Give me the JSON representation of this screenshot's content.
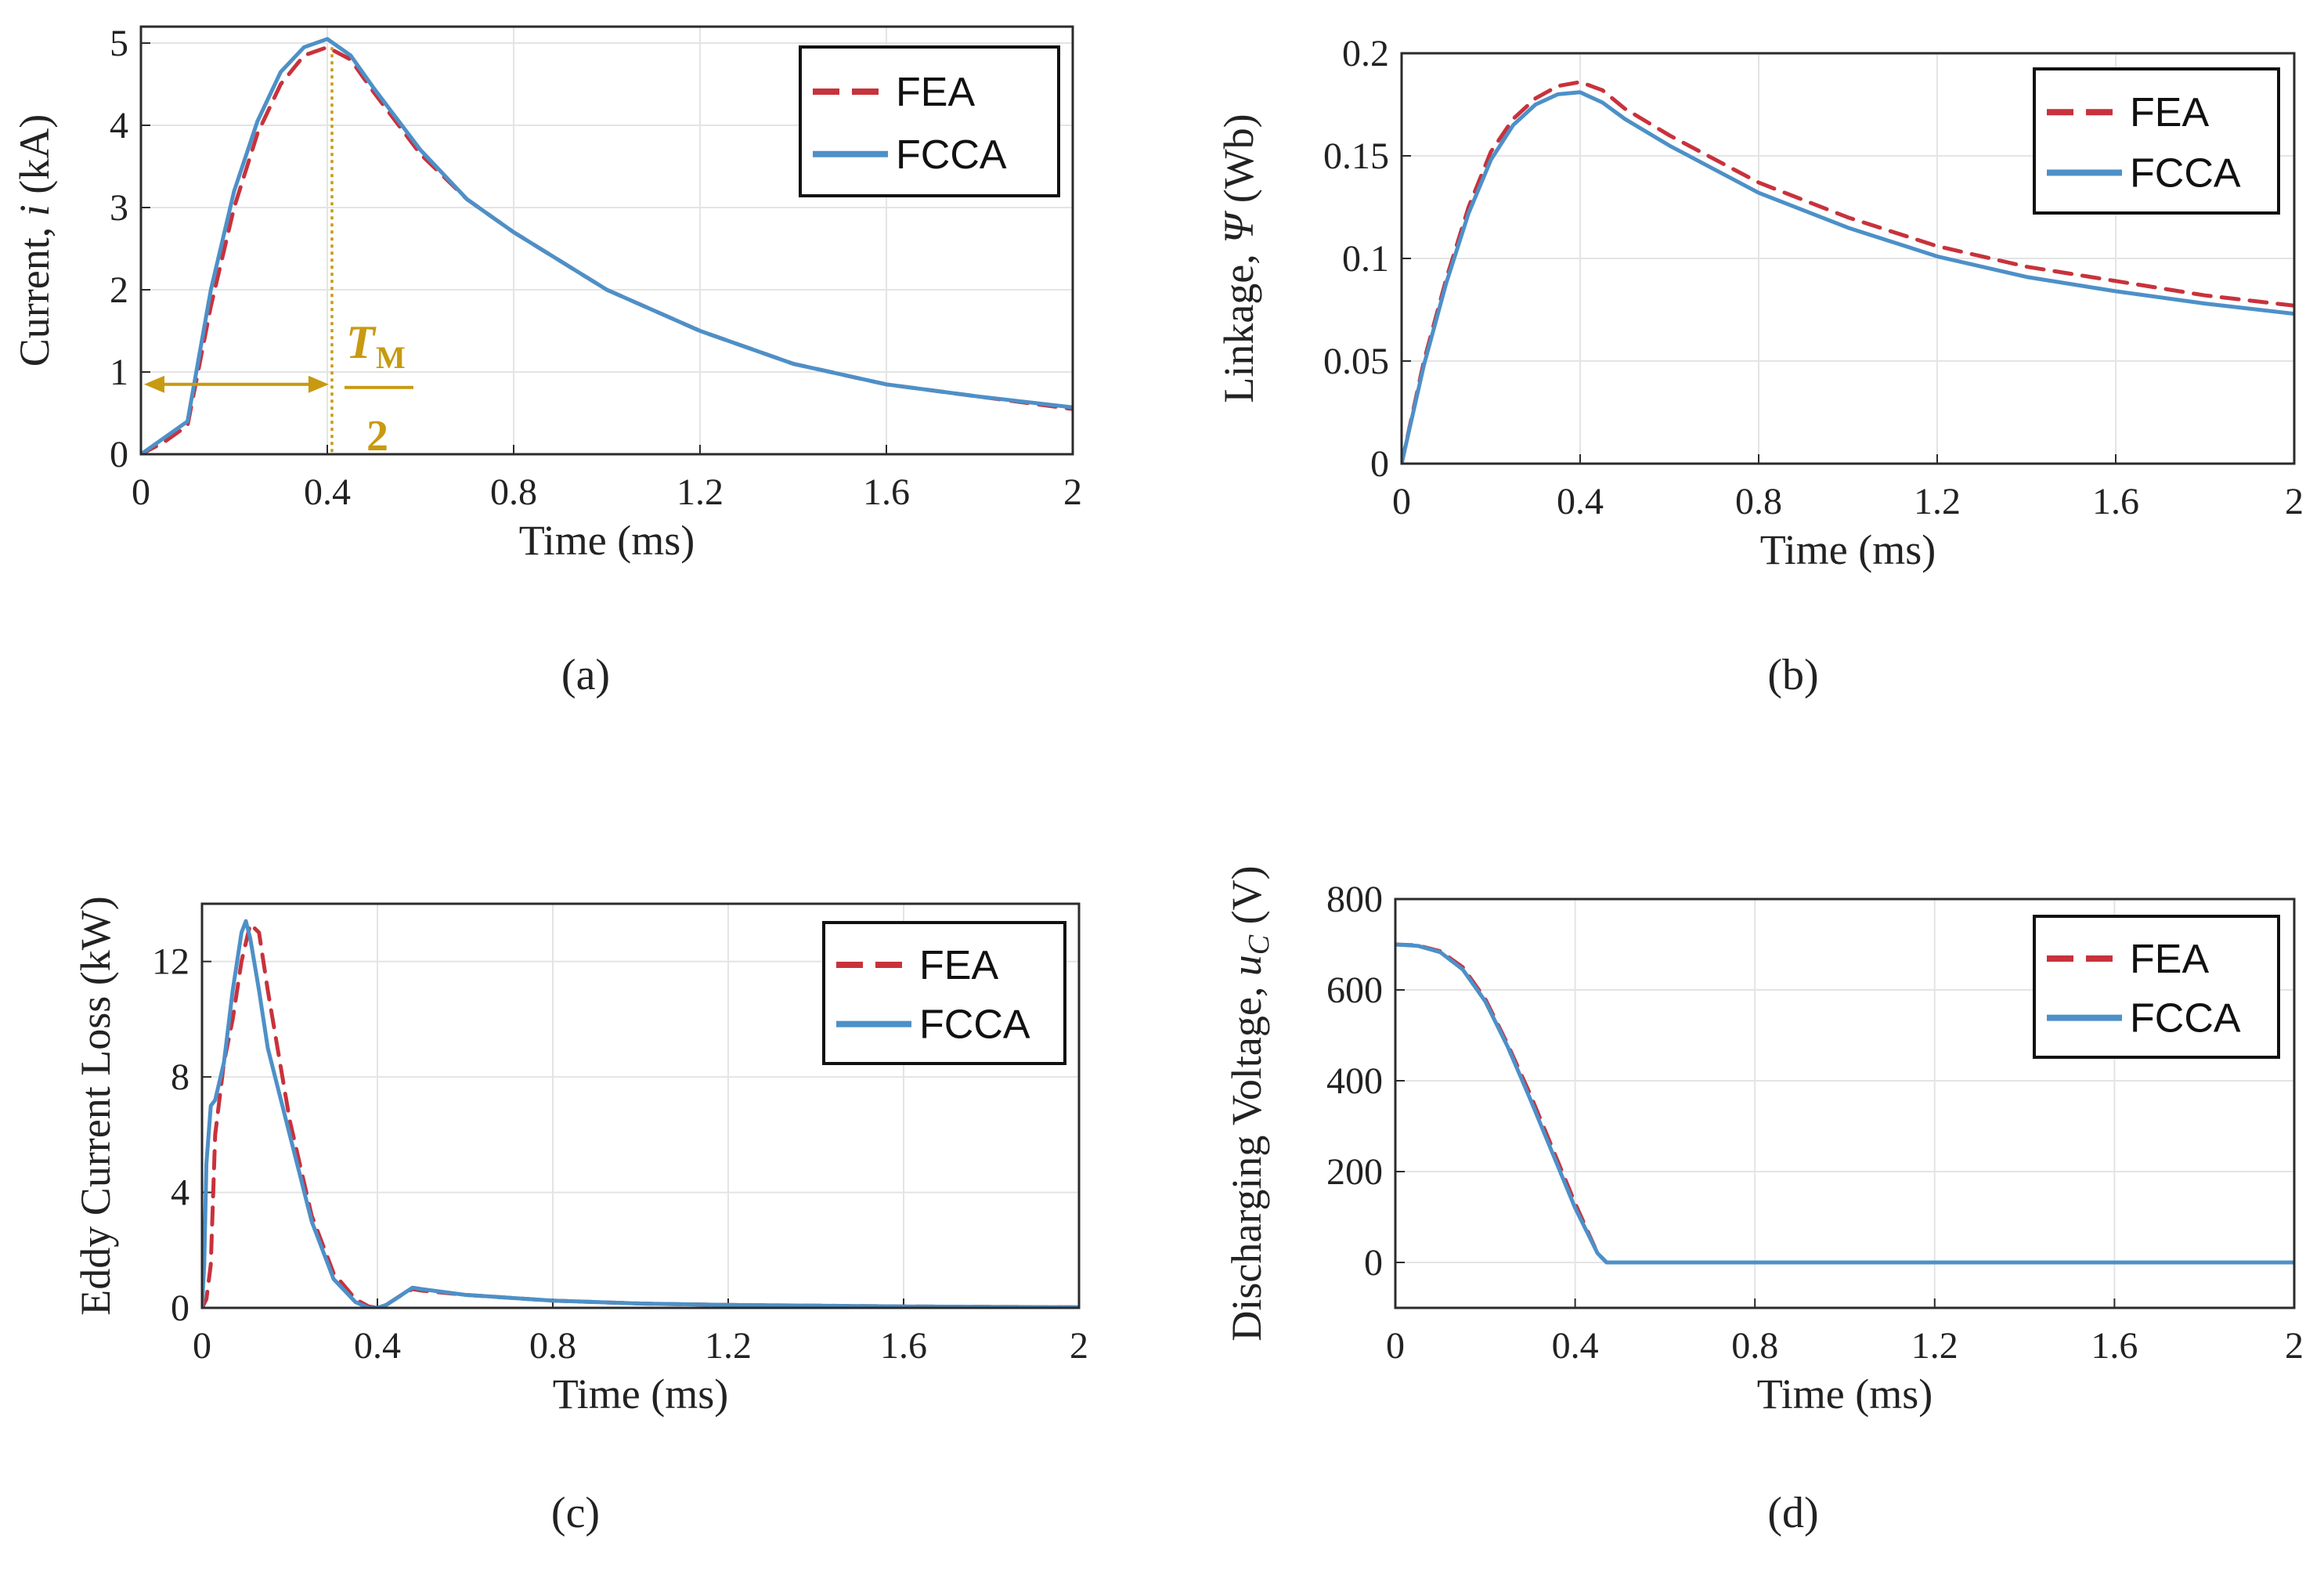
{
  "chart_data": [
    {
      "id": "a",
      "type": "line",
      "caption": "(a)",
      "xlabel": "Time (ms)",
      "ylabel_parts": [
        "Current, ",
        "i",
        " (kA)"
      ],
      "xlim": [
        0,
        2
      ],
      "ylim": [
        0,
        5.2
      ],
      "xticks": [
        0,
        0.4,
        0.8,
        1.2,
        1.6,
        2
      ],
      "xtick_labels": [
        "0",
        "0.4",
        "0.8",
        "1.2",
        "1.6",
        "2"
      ],
      "yticks": [
        0,
        1,
        2,
        3,
        4,
        5
      ],
      "ytick_labels": [
        "0",
        "1",
        "2",
        "3",
        "4",
        "5"
      ],
      "grid": true,
      "legend_position": "top-right",
      "annotation": {
        "symbol": "T",
        "subscript": "M",
        "denominator": "2",
        "x_value": 0.41,
        "arrow_y": 0.85,
        "color": "#c89a10"
      },
      "series": [
        {
          "name": "FEA",
          "style": "dashed",
          "color": "#c8323c",
          "x": [
            0,
            0.05,
            0.1,
            0.15,
            0.2,
            0.25,
            0.3,
            0.35,
            0.4,
            0.45,
            0.5,
            0.6,
            0.7,
            0.8,
            1.0,
            1.2,
            1.4,
            1.6,
            1.8,
            2.0
          ],
          "y": [
            0,
            0.15,
            0.35,
            1.8,
            3.0,
            3.9,
            4.5,
            4.85,
            4.95,
            4.8,
            4.4,
            3.65,
            3.1,
            2.7,
            2.0,
            1.5,
            1.1,
            0.85,
            0.7,
            0.55
          ]
        },
        {
          "name": "FCCA",
          "style": "solid",
          "color": "#4d90c8",
          "x": [
            0,
            0.05,
            0.1,
            0.15,
            0.2,
            0.25,
            0.3,
            0.35,
            0.4,
            0.45,
            0.5,
            0.6,
            0.7,
            0.8,
            1.0,
            1.2,
            1.4,
            1.6,
            1.8,
            2.0
          ],
          "y": [
            0,
            0.2,
            0.4,
            2.0,
            3.2,
            4.05,
            4.65,
            4.95,
            5.05,
            4.85,
            4.45,
            3.7,
            3.1,
            2.7,
            2.0,
            1.5,
            1.1,
            0.85,
            0.7,
            0.57
          ]
        }
      ]
    },
    {
      "id": "b",
      "type": "line",
      "caption": "(b)",
      "xlabel": "Time (ms)",
      "ylabel_parts": [
        "Linkage, ",
        "Ψ",
        " (Wb)"
      ],
      "xlim": [
        0,
        2
      ],
      "ylim": [
        0,
        0.2
      ],
      "xticks": [
        0,
        0.4,
        0.8,
        1.2,
        1.6,
        2
      ],
      "xtick_labels": [
        "0",
        "0.4",
        "0.8",
        "1.2",
        "1.6",
        "2"
      ],
      "yticks": [
        0,
        0.05,
        0.1,
        0.15,
        0.2
      ],
      "ytick_labels": [
        "0",
        "0.05",
        "0.1",
        "0.15",
        "0.2"
      ],
      "grid": true,
      "legend_position": "top-right",
      "series": [
        {
          "name": "FEA",
          "style": "dashed",
          "color": "#c8323c",
          "x": [
            0,
            0.05,
            0.1,
            0.15,
            0.2,
            0.25,
            0.3,
            0.35,
            0.4,
            0.45,
            0.5,
            0.6,
            0.8,
            1.0,
            1.2,
            1.4,
            1.6,
            1.8,
            2.0
          ],
          "y": [
            0,
            0.05,
            0.09,
            0.125,
            0.152,
            0.168,
            0.178,
            0.184,
            0.186,
            0.182,
            0.173,
            0.16,
            0.137,
            0.12,
            0.106,
            0.096,
            0.089,
            0.082,
            0.077
          ]
        },
        {
          "name": "FCCA",
          "style": "solid",
          "color": "#4d90c8",
          "x": [
            0,
            0.05,
            0.1,
            0.15,
            0.2,
            0.25,
            0.3,
            0.35,
            0.4,
            0.45,
            0.5,
            0.6,
            0.8,
            1.0,
            1.2,
            1.4,
            1.6,
            1.8,
            2.0
          ],
          "y": [
            0,
            0.048,
            0.088,
            0.122,
            0.148,
            0.165,
            0.175,
            0.18,
            0.181,
            0.176,
            0.168,
            0.155,
            0.132,
            0.115,
            0.101,
            0.091,
            0.084,
            0.078,
            0.073
          ]
        }
      ]
    },
    {
      "id": "c",
      "type": "line",
      "caption": "(c)",
      "xlabel": "Time (ms)",
      "ylabel_parts": [
        "Eddy Current Loss (kW)"
      ],
      "xlim": [
        0,
        2
      ],
      "ylim": [
        0,
        14
      ],
      "xticks": [
        0,
        0.4,
        0.8,
        1.2,
        1.6,
        2
      ],
      "xtick_labels": [
        "0",
        "0.4",
        "0.8",
        "1.2",
        "1.6",
        "2"
      ],
      "yticks": [
        0,
        4,
        8,
        12
      ],
      "ytick_labels": [
        "0",
        "4",
        "8",
        "12"
      ],
      "grid": true,
      "legend_position": "top-right",
      "series": [
        {
          "name": "FEA",
          "style": "dashed",
          "color": "#c8323c",
          "x": [
            0,
            0.01,
            0.02,
            0.03,
            0.05,
            0.07,
            0.09,
            0.11,
            0.13,
            0.15,
            0.2,
            0.25,
            0.3,
            0.35,
            0.38,
            0.4,
            0.42,
            0.45,
            0.48,
            0.5,
            0.6,
            0.8,
            1.0,
            1.2,
            1.6,
            2.0
          ],
          "y": [
            0,
            0.3,
            1.5,
            6.0,
            8.5,
            10.0,
            12.0,
            13.3,
            13.0,
            11.0,
            6.5,
            3.2,
            1.2,
            0.3,
            0.05,
            0.0,
            0.1,
            0.4,
            0.65,
            0.6,
            0.45,
            0.25,
            0.15,
            0.1,
            0.05,
            0.02
          ]
        },
        {
          "name": "FCCA",
          "style": "solid",
          "color": "#4d90c8",
          "x": [
            0,
            0.005,
            0.01,
            0.02,
            0.03,
            0.05,
            0.07,
            0.09,
            0.1,
            0.11,
            0.13,
            0.15,
            0.2,
            0.25,
            0.3,
            0.35,
            0.38,
            0.4,
            0.42,
            0.45,
            0.48,
            0.5,
            0.6,
            0.8,
            1.0,
            1.2,
            1.6,
            2.0
          ],
          "y": [
            0,
            1.5,
            5.0,
            7.0,
            7.2,
            8.5,
            11.0,
            13.0,
            13.4,
            12.8,
            11.0,
            9.0,
            6.0,
            3.0,
            1.0,
            0.2,
            0.0,
            0.0,
            0.1,
            0.4,
            0.7,
            0.65,
            0.45,
            0.25,
            0.15,
            0.1,
            0.05,
            0.02
          ]
        }
      ]
    },
    {
      "id": "d",
      "type": "line",
      "caption": "(d)",
      "xlabel": "Time (ms)",
      "ylabel_parts": [
        "Discharging Voltage, ",
        "u",
        "C",
        " (V)"
      ],
      "xlim": [
        0,
        2
      ],
      "ylim": [
        -100,
        800
      ],
      "xticks": [
        0,
        0.4,
        0.8,
        1.2,
        1.6,
        2
      ],
      "xtick_labels": [
        "0",
        "0.4",
        "0.8",
        "1.2",
        "1.6",
        "2"
      ],
      "yticks": [
        0,
        200,
        400,
        600,
        800
      ],
      "ytick_labels": [
        "0",
        "200",
        "400",
        "600",
        "800"
      ],
      "grid": true,
      "legend_position": "top-right",
      "series": [
        {
          "name": "FEA",
          "style": "dashed",
          "color": "#c8323c",
          "x": [
            0,
            0.05,
            0.1,
            0.15,
            0.2,
            0.25,
            0.3,
            0.35,
            0.4,
            0.45,
            0.47,
            0.5,
            1.0,
            1.5,
            2.0
          ],
          "y": [
            700,
            698,
            685,
            650,
            580,
            480,
            370,
            250,
            130,
            20,
            0,
            0,
            0,
            0,
            0
          ]
        },
        {
          "name": "FCCA",
          "style": "solid",
          "color": "#4d90c8",
          "x": [
            0,
            0.05,
            0.1,
            0.15,
            0.2,
            0.25,
            0.3,
            0.35,
            0.4,
            0.45,
            0.47,
            0.5,
            1.0,
            1.5,
            2.0
          ],
          "y": [
            700,
            697,
            683,
            645,
            575,
            475,
            360,
            240,
            120,
            20,
            0,
            0,
            0,
            0,
            0
          ]
        }
      ]
    }
  ]
}
